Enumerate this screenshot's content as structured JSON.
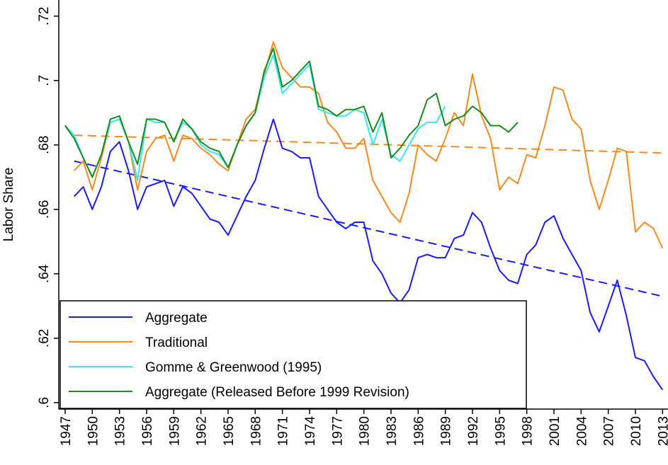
{
  "chart_data": {
    "type": "line",
    "y_label": "Labor Share",
    "xlim": [
      1946.3,
      2013.6
    ],
    "ylim": [
      0.598,
      0.725
    ],
    "xticks": [
      1947,
      1950,
      1953,
      1956,
      1959,
      1962,
      1965,
      1968,
      1971,
      1974,
      1977,
      1980,
      1983,
      1986,
      1989,
      1992,
      1995,
      1998,
      2001,
      2004,
      2007,
      2010,
      2013
    ],
    "yticks": [
      {
        "value": 0.6,
        "label": ".6"
      },
      {
        "value": 0.62,
        "label": ".62"
      },
      {
        "value": 0.64,
        "label": ".64"
      },
      {
        "value": 0.66,
        "label": ".66"
      },
      {
        "value": 0.68,
        "label": ".68"
      },
      {
        "value": 0.7,
        "label": ".7"
      },
      {
        "value": 0.72,
        "label": ".72"
      }
    ],
    "legend": "lower left",
    "series": [
      {
        "name": "Aggregate",
        "color": "#1a1aff",
        "x": [
          1948,
          1949,
          1950,
          1951,
          1952,
          1953,
          1954,
          1955,
          1956,
          1957,
          1958,
          1959,
          1960,
          1961,
          1962,
          1963,
          1964,
          1965,
          1966,
          1967,
          1968,
          1969,
          1970,
          1971,
          1972,
          1973,
          1974,
          1975,
          1976,
          1977,
          1978,
          1979,
          1980,
          1981,
          1982,
          1983,
          1984,
          1985,
          1986,
          1987,
          1988,
          1989,
          1990,
          1991,
          1992,
          1993,
          1994,
          1995,
          1996,
          1997,
          1998,
          1999,
          2000,
          2001,
          2002,
          2003,
          2004,
          2005,
          2006,
          2007,
          2008,
          2009,
          2010,
          2011,
          2012,
          2013
        ],
        "values": [
          0.664,
          0.667,
          0.66,
          0.667,
          0.678,
          0.681,
          0.672,
          0.66,
          0.667,
          0.668,
          0.669,
          0.661,
          0.667,
          0.665,
          0.661,
          0.657,
          0.656,
          0.652,
          0.658,
          0.664,
          0.669,
          0.679,
          0.688,
          0.679,
          0.678,
          0.676,
          0.676,
          0.664,
          0.66,
          0.656,
          0.654,
          0.656,
          0.656,
          0.644,
          0.64,
          0.634,
          0.631,
          0.635,
          0.645,
          0.646,
          0.645,
          0.645,
          0.651,
          0.652,
          0.659,
          0.656,
          0.648,
          0.641,
          0.638,
          0.637,
          0.646,
          0.649,
          0.656,
          0.658,
          0.651,
          0.646,
          0.641,
          0.628,
          0.622,
          0.63,
          0.638,
          0.627,
          0.614,
          0.613,
          0.608,
          0.604
        ]
      },
      {
        "name": "Traditional",
        "color": "#f5891e",
        "x": [
          1948,
          1949,
          1950,
          1951,
          1952,
          1953,
          1954,
          1955,
          1956,
          1957,
          1958,
          1959,
          1960,
          1961,
          1962,
          1963,
          1964,
          1965,
          1966,
          1967,
          1968,
          1969,
          1970,
          1971,
          1972,
          1973,
          1974,
          1975,
          1976,
          1977,
          1978,
          1979,
          1980,
          1981,
          1982,
          1983,
          1984,
          1985,
          1986,
          1987,
          1988,
          1989,
          1990,
          1991,
          1992,
          1993,
          1994,
          1995,
          1996,
          1997,
          1998,
          1999,
          2000,
          2001,
          2002,
          2003,
          2004,
          2005,
          2006,
          2007,
          2008,
          2009,
          2010,
          2011,
          2012,
          2013
        ],
        "values": [
          0.672,
          0.675,
          0.666,
          0.676,
          0.687,
          0.688,
          0.681,
          0.666,
          0.678,
          0.682,
          0.683,
          0.675,
          0.683,
          0.682,
          0.679,
          0.677,
          0.674,
          0.672,
          0.68,
          0.688,
          0.691,
          0.702,
          0.712,
          0.704,
          0.701,
          0.698,
          0.698,
          0.696,
          0.687,
          0.684,
          0.679,
          0.679,
          0.682,
          0.669,
          0.664,
          0.659,
          0.656,
          0.665,
          0.68,
          0.677,
          0.675,
          0.682,
          0.69,
          0.686,
          0.702,
          0.689,
          0.682,
          0.666,
          0.67,
          0.668,
          0.677,
          0.676,
          0.686,
          0.698,
          0.697,
          0.688,
          0.685,
          0.669,
          0.66,
          0.669,
          0.679,
          0.678,
          0.653,
          0.656,
          0.654,
          0.648
        ]
      },
      {
        "name": "Gomme & Greenwood (1995)",
        "color": "#33e8f0",
        "x": [
          1947,
          1948,
          1949,
          1950,
          1951,
          1952,
          1953,
          1954,
          1955,
          1956,
          1957,
          1958,
          1959,
          1960,
          1961,
          1962,
          1963,
          1964,
          1965,
          1966,
          1967,
          1968,
          1969,
          1970,
          1971,
          1972,
          1973,
          1974,
          1975,
          1976,
          1977,
          1978,
          1979,
          1980,
          1981,
          1982,
          1983,
          1984,
          1985,
          1986,
          1987,
          1988,
          1989
        ],
        "values": [
          0.686,
          0.683,
          0.676,
          0.67,
          0.677,
          0.687,
          0.688,
          0.681,
          0.669,
          0.688,
          0.687,
          0.687,
          0.681,
          0.687,
          0.685,
          0.68,
          0.678,
          0.677,
          0.673,
          0.68,
          0.686,
          0.69,
          0.701,
          0.708,
          0.696,
          0.699,
          0.702,
          0.705,
          0.691,
          0.69,
          0.689,
          0.689,
          0.691,
          0.69,
          0.68,
          0.688,
          0.677,
          0.675,
          0.68,
          0.685,
          0.687,
          0.687,
          0.692
        ]
      },
      {
        "name": "Aggregate (Released Before 1999 Revision)",
        "color": "#1a8a1a",
        "x": [
          1947,
          1948,
          1949,
          1950,
          1951,
          1952,
          1953,
          1954,
          1955,
          1956,
          1957,
          1958,
          1959,
          1960,
          1961,
          1962,
          1963,
          1964,
          1965,
          1966,
          1967,
          1968,
          1969,
          1970,
          1971,
          1972,
          1973,
          1974,
          1975,
          1976,
          1977,
          1978,
          1979,
          1980,
          1981,
          1982,
          1983,
          1984,
          1985,
          1986,
          1987,
          1988,
          1989,
          1990,
          1991,
          1992,
          1993,
          1994,
          1995,
          1996,
          1997
        ],
        "values": [
          0.686,
          0.682,
          0.676,
          0.67,
          0.677,
          0.688,
          0.689,
          0.681,
          0.674,
          0.688,
          0.688,
          0.687,
          0.681,
          0.688,
          0.685,
          0.681,
          0.679,
          0.678,
          0.673,
          0.68,
          0.686,
          0.69,
          0.703,
          0.71,
          0.698,
          0.7,
          0.703,
          0.706,
          0.692,
          0.691,
          0.689,
          0.691,
          0.691,
          0.692,
          0.684,
          0.69,
          0.676,
          0.679,
          0.683,
          0.686,
          0.694,
          0.696,
          0.686,
          0.688,
          0.689,
          0.692,
          0.69,
          0.686,
          0.686,
          0.684,
          0.687
        ]
      }
    ],
    "trend_lines": [
      {
        "color": "#1a1aff",
        "x": [
          1948,
          2013
        ],
        "values": [
          0.675,
          0.633
        ]
      },
      {
        "color": "#f5891e",
        "x": [
          1948,
          2013
        ],
        "values": [
          0.683,
          0.6775
        ]
      }
    ]
  }
}
